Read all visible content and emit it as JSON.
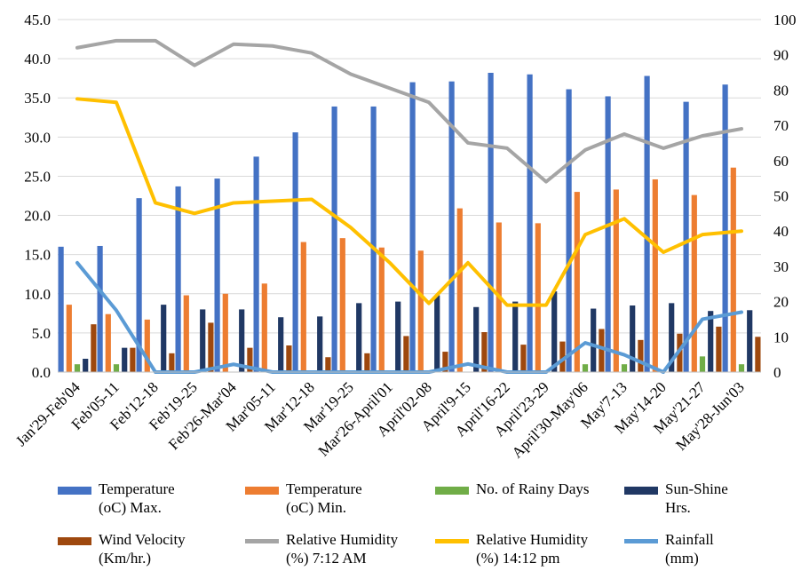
{
  "chart_data": {
    "type": "bar",
    "categories": [
      "Jan'29-Feb'04",
      "Feb'05-11",
      "Feb'12-18",
      "Feb'19-25",
      "Feb'26-Mar'04",
      "Mar'05-11",
      "Mar'12-18",
      "Mar'19-25",
      "Mar'26-April'01",
      "April'02-08",
      "April'9-15",
      "April'16-22",
      "April'23-29",
      "April'30-May'06",
      "May'7-13",
      "May'14-20",
      "May'21-27",
      "May'28-Jun'03"
    ],
    "left_axis": {
      "ylim": [
        0,
        45
      ],
      "ticks": [
        "0.0",
        "5.0",
        "10.0",
        "15.0",
        "20.0",
        "25.0",
        "30.0",
        "35.0",
        "40.0",
        "45.0"
      ]
    },
    "right_axis": {
      "ylim": [
        0,
        100
      ],
      "ticks": [
        "0",
        "10",
        "20",
        "30",
        "40",
        "50",
        "60",
        "70",
        "80",
        "90",
        "100"
      ]
    },
    "grid": "horizontal",
    "legend_position": "bottom",
    "bar_series": [
      {
        "name": "Temperature\n(oC) Max.",
        "color": "#4472C4",
        "axis": "left",
        "values": [
          16.0,
          16.1,
          22.2,
          23.7,
          24.7,
          27.5,
          30.6,
          33.9,
          33.9,
          37.0,
          37.1,
          38.2,
          38.0,
          36.1,
          35.2,
          37.8,
          34.5,
          36.7
        ]
      },
      {
        "name": "Temperature\n(oC) Min.",
        "color": "#ED7D31",
        "axis": "left",
        "values": [
          8.6,
          7.4,
          6.7,
          9.8,
          10.0,
          11.3,
          16.6,
          17.1,
          15.9,
          15.5,
          20.9,
          19.1,
          19.0,
          23.0,
          23.3,
          24.6,
          22.6,
          26.1
        ]
      },
      {
        "name": "No. of Rainy Days",
        "color": "#70AD47",
        "axis": "left",
        "values": [
          1.0,
          1.0,
          0,
          0,
          0,
          0,
          0,
          0,
          0,
          0,
          0,
          0,
          0,
          1.0,
          1.0,
          0,
          2.0,
          1.0
        ]
      },
      {
        "name": "Sun-Shine\nHrs.",
        "color": "#203864",
        "axis": "left",
        "values": [
          1.7,
          3.1,
          8.6,
          8.0,
          8.0,
          7.0,
          7.1,
          8.8,
          9.0,
          9.8,
          8.3,
          9.0,
          10.3,
          8.1,
          8.5,
          8.8,
          7.8,
          7.9
        ]
      },
      {
        "name": "Wind Velocity\n(Km/hr.)",
        "color": "#9E480E",
        "axis": "left",
        "values": [
          6.1,
          3.1,
          2.4,
          6.3,
          3.1,
          3.4,
          1.9,
          2.4,
          4.6,
          2.6,
          5.1,
          3.5,
          3.9,
          5.5,
          4.1,
          4.9,
          5.8,
          4.5
        ]
      }
    ],
    "line_series": [
      {
        "name": "Relative Humidity\n(%) 7:12 AM",
        "color": "#A5A5A5",
        "axis": "right",
        "values": [
          92,
          94,
          94,
          87,
          93,
          92.5,
          90.5,
          84.5,
          80.5,
          76.5,
          65,
          63.5,
          54,
          63,
          67.5,
          63.5,
          67,
          69
        ]
      },
      {
        "name": "Relative Humidity\n(%) 14:12 pm",
        "color": "#FFC000",
        "axis": "right",
        "values": [
          77.5,
          76.5,
          48,
          45,
          48,
          48.5,
          49,
          41,
          31,
          19.5,
          31,
          19,
          19,
          39,
          43.5,
          34,
          39,
          40
        ]
      },
      {
        "name": "Rainfall\n(mm)",
        "color": "#5B9BD5",
        "axis": "right",
        "values": [
          31,
          17.5,
          0,
          0,
          2.2,
          0,
          0,
          0,
          0,
          0,
          2.3,
          0,
          0,
          8.3,
          4.9,
          0,
          15,
          17
        ]
      }
    ]
  },
  "legend": [
    {
      "key": "temp-max",
      "label": "Temperature\n(oC) Max.",
      "kind": "bar",
      "color": "#4472C4"
    },
    {
      "key": "temp-min",
      "label": "Temperature\n(oC) Min.",
      "kind": "bar",
      "color": "#ED7D31"
    },
    {
      "key": "rainy-days",
      "label": "No. of Rainy Days",
      "kind": "bar",
      "color": "#70AD47"
    },
    {
      "key": "sunshine",
      "label": "Sun-Shine\nHrs.",
      "kind": "bar",
      "color": "#203864"
    },
    {
      "key": "wind",
      "label": "Wind Velocity\n(Km/hr.)",
      "kind": "bar",
      "color": "#9E480E"
    },
    {
      "key": "rh-am",
      "label": "Relative Humidity\n(%) 7:12 AM",
      "kind": "line",
      "color": "#A5A5A5"
    },
    {
      "key": "rh-pm",
      "label": "Relative Humidity\n(%) 14:12 pm",
      "kind": "line",
      "color": "#FFC000"
    },
    {
      "key": "rainfall",
      "label": "Rainfall\n(mm)",
      "kind": "line",
      "color": "#5B9BD5"
    }
  ]
}
